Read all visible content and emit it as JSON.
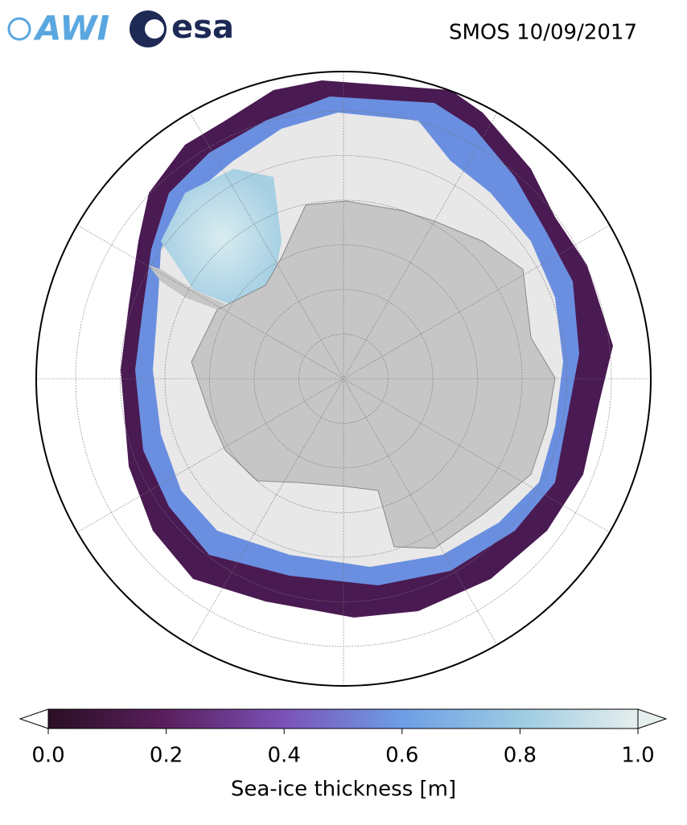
{
  "logos": {
    "awi": "AWI",
    "esa": "esa"
  },
  "title": "SMOS 10/09/2017",
  "colorbar": {
    "label": "Sea-ice thickness [m]",
    "lim": [
      0,
      1
    ],
    "ticks": [
      {
        "value": 0,
        "label": "0.0"
      },
      0.2,
      0.4,
      0.6,
      0.8,
      {
        "value": 1,
        "label": "1.0"
      }
    ],
    "colors": [
      "#2a0f24",
      "#5a1f5e",
      "#7b52b8",
      "#6d9ee6",
      "#9ccbe2",
      "#e6eeee"
    ]
  }
}
